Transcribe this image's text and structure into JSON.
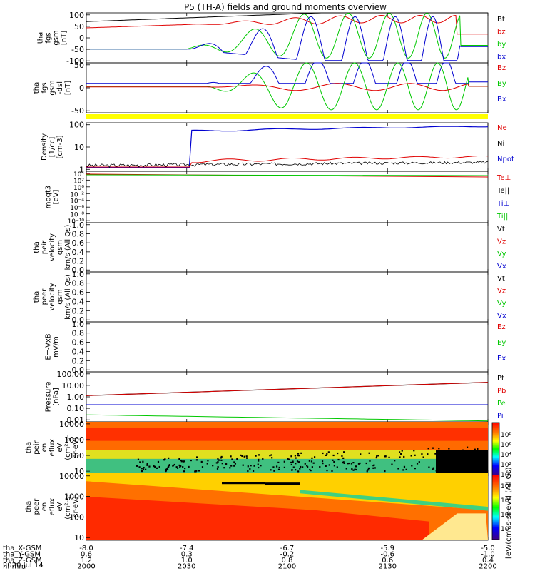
{
  "title": "P5 (TH-A) fields and ground moments overview",
  "date_label": "2020 Jul 14",
  "ephemeris": {
    "rows": [
      {
        "label": "tha_X-GSM",
        "values": [
          "-8.0",
          "-7.4",
          "-6.7",
          "-5.9",
          "-5.0"
        ]
      },
      {
        "label": "tha_Y-GSM",
        "values": [
          "0.6",
          "0.3",
          "-0.2",
          "-0.6",
          "-1.0"
        ]
      },
      {
        "label": "tha_Z-GSM",
        "values": [
          "1.2",
          "1.0",
          "0.8",
          "0.6",
          "0.4"
        ]
      },
      {
        "label": "hhmm",
        "values": [
          "2000",
          "2030",
          "2100",
          "2130",
          "2200"
        ]
      }
    ]
  },
  "colorbar_label": "[eV/(cm²-s-sr-eV)] (All Qs)",
  "colorbar_ticks_1": [
    "10⁸",
    "10⁶",
    "10⁴",
    "10²",
    "10⁰"
  ],
  "colorbar_ticks_2": [
    "10⁸",
    "10⁶",
    "10⁴",
    "10²"
  ],
  "colors": {
    "black": "#000000",
    "red": "#e00000",
    "green": "#00c800",
    "blue": "#0000d0",
    "yellow": "#ffff00"
  },
  "chart_data": [
    {
      "type": "line",
      "panel": "fgs_gsm",
      "ylabel_lines": [
        "tha",
        "fgs",
        "gsm",
        "[nT]"
      ],
      "yticks": [
        "100",
        "50",
        "0",
        "-50",
        "-100"
      ],
      "ylim": [
        -100,
        100
      ],
      "legend": [
        {
          "name": "Bt",
          "color": "#000000"
        },
        {
          "name": "bz",
          "color": "#e00000"
        },
        {
          "name": "by",
          "color": "#00c800"
        },
        {
          "name": "bx",
          "color": "#0000d0"
        }
      ]
    },
    {
      "type": "line",
      "panel": "fgs_dsl",
      "ylabel_lines": [
        "tha",
        "fgs",
        "gsm",
        "-dsl",
        "[nT]"
      ],
      "yticks": [
        "50",
        "0",
        "-50"
      ],
      "ylim": [
        -90,
        80
      ],
      "legend": [
        {
          "name": "Bz",
          "color": "#e00000"
        },
        {
          "name": "By",
          "color": "#00c800"
        },
        {
          "name": "Bx",
          "color": "#0000d0"
        }
      ]
    },
    {
      "type": "line",
      "panel": "density",
      "ylabel_lines": [
        "Density",
        "[1/cc]",
        "[cm-3]"
      ],
      "yticks": [
        "100",
        "10",
        "1"
      ],
      "scale": "log",
      "legend": [
        {
          "name": "Ne",
          "color": "#e00000"
        },
        {
          "name": "Ni",
          "color": "#000000"
        },
        {
          "name": "Npot",
          "color": "#0000d0"
        }
      ]
    },
    {
      "type": "line",
      "panel": "temperature",
      "ylabel_lines": [
        "moqt3",
        "[eV]"
      ],
      "yticks": [
        "10⁴",
        "10²",
        "10⁰",
        "10⁻²",
        "10⁻⁴",
        "10⁻⁶",
        "10⁻⁸",
        "10⁻¹⁰"
      ],
      "scale": "log",
      "legend": [
        {
          "name": "Te⊥",
          "color": "#e00000"
        },
        {
          "name": "Te||",
          "color": "#000000"
        },
        {
          "name": "Ti⊥",
          "color": "#0000d0"
        },
        {
          "name": "Ti||",
          "color": "#00c800"
        }
      ]
    },
    {
      "type": "line",
      "panel": "ion_velocity",
      "ylabel_lines": [
        "tha",
        "peir",
        "velocity",
        "gsm",
        "km/s (All Qs)"
      ],
      "yticks": [
        "1.0",
        "0.8",
        "0.6",
        "0.4",
        "0.2",
        "0.0"
      ],
      "ylim": [
        0,
        1
      ],
      "legend": [
        {
          "name": "Vt",
          "color": "#000000"
        },
        {
          "name": "Vz",
          "color": "#e00000"
        },
        {
          "name": "Vy",
          "color": "#00c800"
        },
        {
          "name": "Vx",
          "color": "#0000d0"
        }
      ]
    },
    {
      "type": "line",
      "panel": "electron_velocity",
      "ylabel_lines": [
        "tha",
        "peer",
        "velocity",
        "gsm",
        "km/s (All Qs)"
      ],
      "yticks": [
        "1.0",
        "0.8",
        "0.6",
        "0.4",
        "0.2",
        "0.0"
      ],
      "ylim": [
        0,
        1
      ],
      "legend": [
        {
          "name": "Vt",
          "color": "#000000"
        },
        {
          "name": "Vz",
          "color": "#e00000"
        },
        {
          "name": "Vy",
          "color": "#00c800"
        },
        {
          "name": "Vx",
          "color": "#0000d0"
        }
      ]
    },
    {
      "type": "line",
      "panel": "efield",
      "ylabel_lines": [
        "E=-VxB",
        "mV/m"
      ],
      "yticks": [
        "1.0",
        "0.8",
        "0.6",
        "0.4",
        "0.2",
        "0.0"
      ],
      "ylim": [
        0,
        1
      ],
      "legend": [
        {
          "name": "Ez",
          "color": "#e00000"
        },
        {
          "name": "Ey",
          "color": "#00c800"
        },
        {
          "name": "Ex",
          "color": "#0000d0"
        }
      ]
    },
    {
      "type": "line",
      "panel": "pressure",
      "ylabel_lines": [
        "Pressure",
        "[nPa]"
      ],
      "yticks": [
        "100.00",
        "10.00",
        "1.00",
        "0.10",
        "0.01"
      ],
      "scale": "log",
      "legend": [
        {
          "name": "Pt",
          "color": "#000000"
        },
        {
          "name": "Pb",
          "color": "#e00000"
        },
        {
          "name": "Pe",
          "color": "#00c800"
        },
        {
          "name": "Pi",
          "color": "#0000d0"
        }
      ],
      "series": [
        {
          "name": "Pt",
          "x": [
            "2000",
            "2200"
          ],
          "values": [
            1.8,
            25
          ]
        },
        {
          "name": "Pb",
          "x": [
            "2000",
            "2200"
          ],
          "values": [
            1.8,
            25
          ]
        },
        {
          "name": "Pi",
          "x": [
            "2000",
            "2200"
          ],
          "values": [
            0.3,
            0.3
          ]
        },
        {
          "name": "Pe",
          "x": [
            "2000",
            "2200"
          ],
          "values": [
            0.04,
            0.012
          ]
        }
      ]
    },
    {
      "type": "heatmap",
      "panel": "ion_spectrogram",
      "ylabel_lines": [
        "tha",
        "peir",
        "en",
        "eflux",
        "eV",
        "(cm²-s-",
        "sr-eV)"
      ],
      "yticks": [
        "10000",
        "1000",
        "100",
        "10"
      ],
      "scale": "log"
    },
    {
      "type": "heatmap",
      "panel": "electron_spectrogram",
      "ylabel_lines": [
        "tha",
        "peer",
        "en",
        "eflux",
        "eV",
        "(cm²-s-",
        "sr-eV)"
      ],
      "yticks": [
        "10000",
        "1000",
        "100",
        "10"
      ],
      "scale": "log"
    }
  ]
}
